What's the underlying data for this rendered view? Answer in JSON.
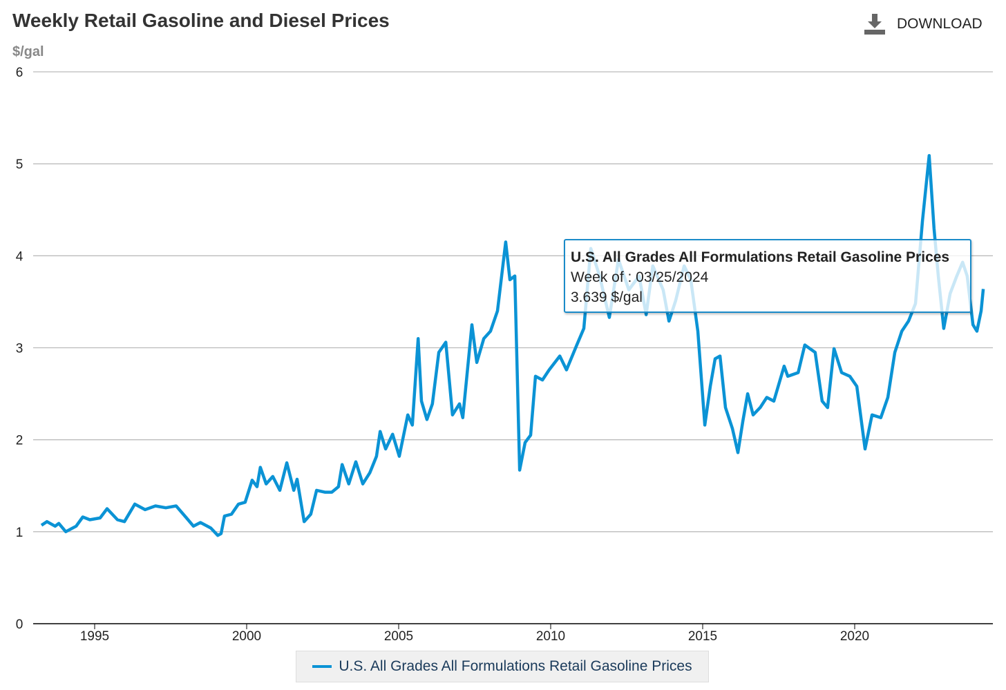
{
  "header": {
    "title": "Weekly Retail Gasoline and Diesel Prices",
    "unit": "$/gal",
    "download_label": "DOWNLOAD",
    "download_icon": "download-icon"
  },
  "tooltip": {
    "title": "U.S. All Grades All Formulations Retail Gasoline Prices",
    "week": "Week of : 03/25/2024",
    "value": "3.639 $/gal"
  },
  "colors": {
    "series": "#0b93d5",
    "grid": "#bbbbbb",
    "axis": "#000000"
  },
  "chart_data": {
    "type": "line",
    "title": "Weekly Retail Gasoline and Diesel Prices",
    "ylabel": "$/gal",
    "xlabel": "",
    "xlim": [
      1993.0,
      2024.6
    ],
    "ylim": [
      0,
      6
    ],
    "yticks": [
      "0",
      "1",
      "2",
      "3",
      "4",
      "5",
      "6"
    ],
    "xticks": [
      "1995",
      "2000",
      "2005",
      "2010",
      "2015",
      "2020"
    ],
    "grid": true,
    "legend": "bottom-center",
    "series": [
      {
        "name": "U.S. All Grades All Formulations Retail Gasoline Prices",
        "points": [
          [
            1993.25,
            1.07
          ],
          [
            1993.43,
            1.11
          ],
          [
            1993.7,
            1.06
          ],
          [
            1993.82,
            1.09
          ],
          [
            1994.05,
            1.0
          ],
          [
            1994.39,
            1.06
          ],
          [
            1994.61,
            1.16
          ],
          [
            1994.84,
            1.13
          ],
          [
            1995.18,
            1.15
          ],
          [
            1995.41,
            1.25
          ],
          [
            1995.75,
            1.13
          ],
          [
            1995.98,
            1.11
          ],
          [
            1996.32,
            1.3
          ],
          [
            1996.66,
            1.24
          ],
          [
            1997.0,
            1.28
          ],
          [
            1997.34,
            1.26
          ],
          [
            1997.68,
            1.28
          ],
          [
            1998.02,
            1.15
          ],
          [
            1998.25,
            1.06
          ],
          [
            1998.48,
            1.1
          ],
          [
            1998.82,
            1.04
          ],
          [
            1999.05,
            0.96
          ],
          [
            1999.16,
            0.98
          ],
          [
            1999.27,
            1.17
          ],
          [
            1999.5,
            1.19
          ],
          [
            1999.73,
            1.3
          ],
          [
            1999.95,
            1.32
          ],
          [
            2000.18,
            1.56
          ],
          [
            2000.34,
            1.49
          ],
          [
            2000.45,
            1.7
          ],
          [
            2000.64,
            1.52
          ],
          [
            2000.86,
            1.6
          ],
          [
            2001.09,
            1.45
          ],
          [
            2001.32,
            1.75
          ],
          [
            2001.55,
            1.45
          ],
          [
            2001.66,
            1.57
          ],
          [
            2001.89,
            1.11
          ],
          [
            2002.11,
            1.19
          ],
          [
            2002.3,
            1.45
          ],
          [
            2002.57,
            1.43
          ],
          [
            2002.8,
            1.43
          ],
          [
            2003.02,
            1.49
          ],
          [
            2003.14,
            1.73
          ],
          [
            2003.36,
            1.52
          ],
          [
            2003.59,
            1.76
          ],
          [
            2003.82,
            1.52
          ],
          [
            2004.05,
            1.64
          ],
          [
            2004.27,
            1.82
          ],
          [
            2004.39,
            2.09
          ],
          [
            2004.57,
            1.9
          ],
          [
            2004.8,
            2.06
          ],
          [
            2005.02,
            1.82
          ],
          [
            2005.3,
            2.27
          ],
          [
            2005.45,
            2.16
          ],
          [
            2005.64,
            3.1
          ],
          [
            2005.75,
            2.42
          ],
          [
            2005.93,
            2.22
          ],
          [
            2006.11,
            2.39
          ],
          [
            2006.32,
            2.95
          ],
          [
            2006.55,
            3.06
          ],
          [
            2006.77,
            2.27
          ],
          [
            2007.0,
            2.39
          ],
          [
            2007.11,
            2.24
          ],
          [
            2007.41,
            3.25
          ],
          [
            2007.57,
            2.84
          ],
          [
            2007.8,
            3.1
          ],
          [
            2008.02,
            3.18
          ],
          [
            2008.25,
            3.4
          ],
          [
            2008.52,
            4.15
          ],
          [
            2008.66,
            3.74
          ],
          [
            2008.82,
            3.78
          ],
          [
            2008.98,
            1.67
          ],
          [
            2009.16,
            1.97
          ],
          [
            2009.34,
            2.05
          ],
          [
            2009.5,
            2.69
          ],
          [
            2009.73,
            2.65
          ],
          [
            2009.95,
            2.76
          ],
          [
            2010.3,
            2.91
          ],
          [
            2010.52,
            2.76
          ],
          [
            2010.86,
            3.03
          ],
          [
            2011.09,
            3.21
          ],
          [
            2011.32,
            4.08
          ],
          [
            2011.61,
            3.78
          ],
          [
            2011.93,
            3.33
          ],
          [
            2012.23,
            3.96
          ],
          [
            2012.57,
            3.63
          ],
          [
            2012.91,
            3.78
          ],
          [
            2013.14,
            3.36
          ],
          [
            2013.36,
            3.89
          ],
          [
            2013.7,
            3.63
          ],
          [
            2013.89,
            3.29
          ],
          [
            2014.11,
            3.51
          ],
          [
            2014.39,
            3.89
          ],
          [
            2014.61,
            3.74
          ],
          [
            2014.84,
            3.18
          ],
          [
            2015.07,
            2.16
          ],
          [
            2015.25,
            2.58
          ],
          [
            2015.41,
            2.88
          ],
          [
            2015.57,
            2.91
          ],
          [
            2015.75,
            2.35
          ],
          [
            2015.98,
            2.12
          ],
          [
            2016.16,
            1.86
          ],
          [
            2016.32,
            2.2
          ],
          [
            2016.48,
            2.5
          ],
          [
            2016.66,
            2.27
          ],
          [
            2016.89,
            2.35
          ],
          [
            2017.11,
            2.46
          ],
          [
            2017.34,
            2.42
          ],
          [
            2017.68,
            2.8
          ],
          [
            2017.8,
            2.69
          ],
          [
            2018.14,
            2.73
          ],
          [
            2018.36,
            3.03
          ],
          [
            2018.7,
            2.95
          ],
          [
            2018.93,
            2.42
          ],
          [
            2019.11,
            2.35
          ],
          [
            2019.32,
            2.99
          ],
          [
            2019.57,
            2.73
          ],
          [
            2019.84,
            2.69
          ],
          [
            2020.07,
            2.58
          ],
          [
            2020.34,
            1.9
          ],
          [
            2020.57,
            2.27
          ],
          [
            2020.86,
            2.24
          ],
          [
            2021.09,
            2.46
          ],
          [
            2021.32,
            2.95
          ],
          [
            2021.55,
            3.18
          ],
          [
            2021.77,
            3.29
          ],
          [
            2022.0,
            3.48
          ],
          [
            2022.23,
            4.38
          ],
          [
            2022.45,
            5.09
          ],
          [
            2022.61,
            4.3
          ],
          [
            2022.75,
            3.78
          ],
          [
            2022.93,
            3.21
          ],
          [
            2023.14,
            3.59
          ],
          [
            2023.36,
            3.78
          ],
          [
            2023.55,
            3.93
          ],
          [
            2023.7,
            3.78
          ],
          [
            2023.89,
            3.25
          ],
          [
            2024.02,
            3.18
          ],
          [
            2024.16,
            3.4
          ],
          [
            2024.23,
            3.639
          ]
        ]
      }
    ]
  }
}
